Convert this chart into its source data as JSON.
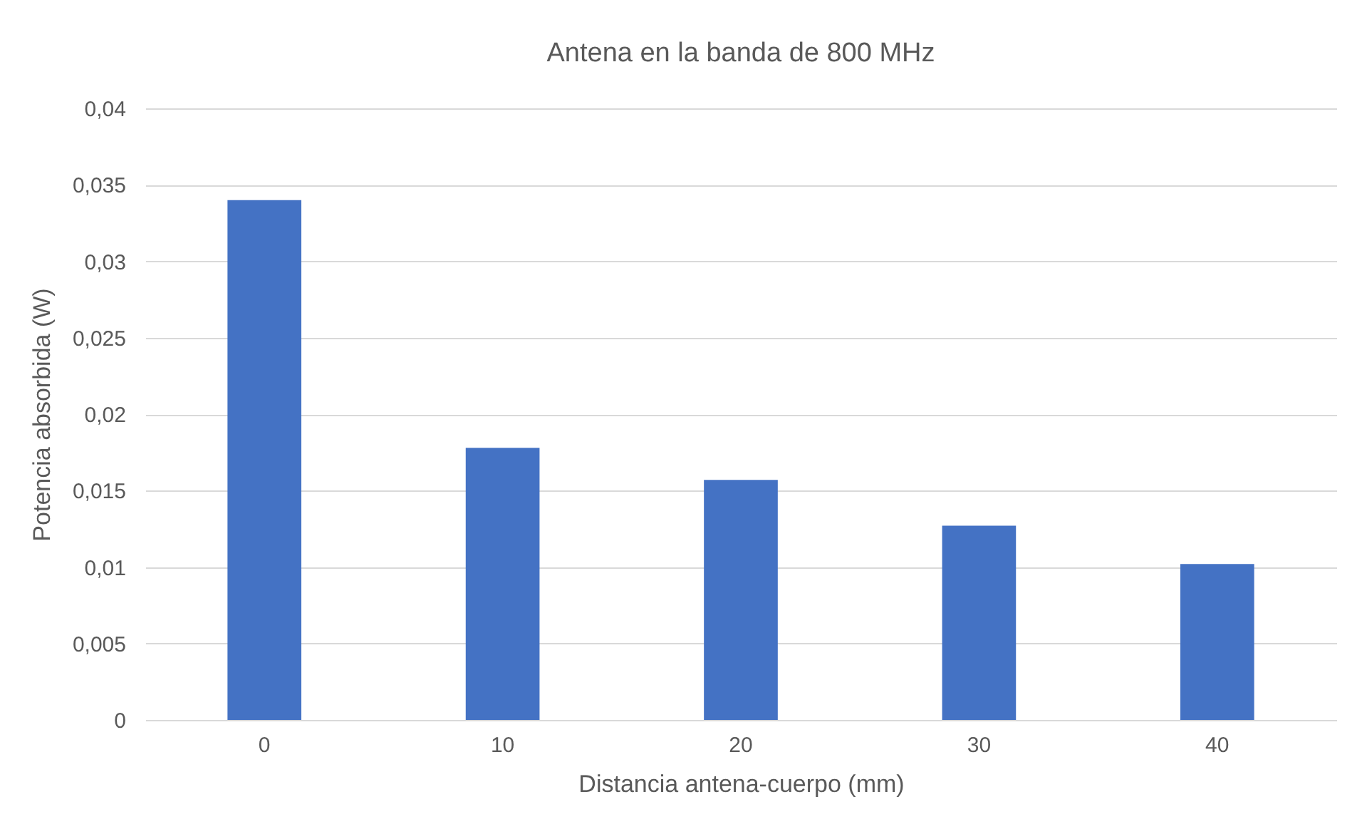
{
  "chart_data": {
    "type": "bar",
    "title": "Antena en la banda de 800 MHz",
    "xlabel": "Distancia antena-cuerpo (mm)",
    "ylabel": "Potencia absorbida (W)",
    "categories": [
      "0",
      "10",
      "20",
      "30",
      "40"
    ],
    "values": [
      0.034,
      0.0178,
      0.0157,
      0.0127,
      0.0102
    ],
    "color": "#4472c4",
    "ylim": [
      0,
      0.04
    ],
    "yticks": [
      {
        "value": 0,
        "label": "0"
      },
      {
        "value": 0.005,
        "label": "0,005"
      },
      {
        "value": 0.01,
        "label": "0,01"
      },
      {
        "value": 0.015,
        "label": "0,015"
      },
      {
        "value": 0.02,
        "label": "0,02"
      },
      {
        "value": 0.025,
        "label": "0,025"
      },
      {
        "value": 0.03,
        "label": "0,03"
      },
      {
        "value": 0.035,
        "label": "0,035"
      },
      {
        "value": 0.04,
        "label": "0,04"
      }
    ],
    "grid": "y"
  }
}
